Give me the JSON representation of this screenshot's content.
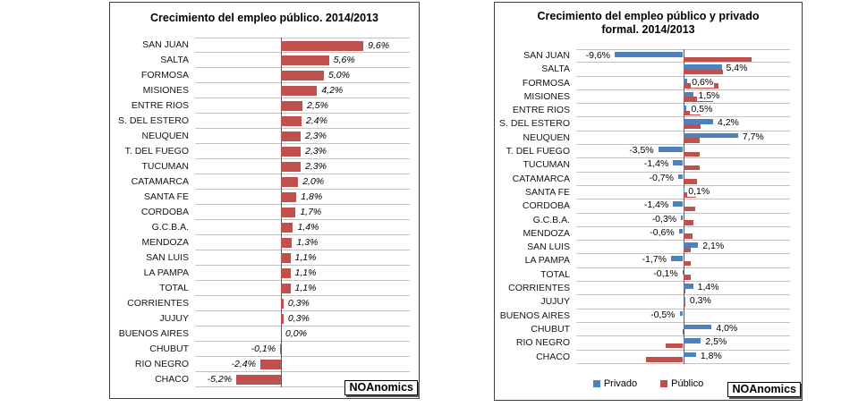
{
  "brand_label": "NOAnomics",
  "colors": {
    "publico_bar": "#C0504D",
    "privado_bar": "#4F81BD",
    "gridline": "#c4c4c4",
    "zero_axis": "#5a5a5a",
    "chart_border": "#3f3f3f",
    "background": "#ffffff"
  },
  "left_chart": {
    "title": "Crecimiento del empleo público. 2014/2013"
  },
  "right_chart": {
    "title_line1": "Crecimiento del empleo público y privado",
    "title_line2": "formal. 2014/2013",
    "legend": {
      "privado": "Privado",
      "publico": "Público"
    }
  },
  "chart_data": [
    {
      "type": "bar",
      "orientation": "horizontal",
      "title": "Crecimiento del empleo público. 2014/2013",
      "series_name": "Público",
      "bar_color": "#C0504D",
      "categories": [
        "SAN JUAN",
        "SALTA",
        "FORMOSA",
        "MISIONES",
        "ENTRE RIOS",
        "S. DEL ESTERO",
        "NEUQUEN",
        "T. DEL FUEGO",
        "TUCUMAN",
        "CATAMARCA",
        "SANTA FE",
        "CORDOBA",
        "G.C.B.A.",
        "MENDOZA",
        "SAN LUIS",
        "LA PAMPA",
        "TOTAL",
        "CORRIENTES",
        "JUJUY",
        "BUENOS AIRES",
        "CHUBUT",
        "RIO NEGRO",
        "CHACO"
      ],
      "values": [
        9.6,
        5.6,
        5.0,
        4.2,
        2.5,
        2.4,
        2.3,
        2.3,
        2.3,
        2.0,
        1.8,
        1.7,
        1.4,
        1.3,
        1.1,
        1.1,
        1.1,
        0.3,
        0.3,
        0.0,
        -0.1,
        -2.4,
        -5.2
      ],
      "value_labels": [
        "9,6%",
        "5,6%",
        "5,0%",
        "4,2%",
        "2,5%",
        "2,4%",
        "2,3%",
        "2,3%",
        "2,3%",
        "2,0%",
        "1,8%",
        "1,7%",
        "1,4%",
        "1,3%",
        "1,1%",
        "1,1%",
        "1,1%",
        "0,3%",
        "0,3%",
        "0,0%",
        "-0,1%",
        "-2,4%",
        "-5,2%"
      ],
      "xlim": [
        -10,
        15
      ],
      "grid": true,
      "legend_position": "none"
    },
    {
      "type": "bar",
      "orientation": "horizontal",
      "title": "Crecimiento del empleo público y privado formal. 2014/2013",
      "categories": [
        "SAN JUAN",
        "SALTA",
        "FORMOSA",
        "MISIONES",
        "ENTRE RIOS",
        "S. DEL ESTERO",
        "NEUQUEN",
        "T. DEL FUEGO",
        "TUCUMAN",
        "CATAMARCA",
        "SANTA FE",
        "CORDOBA",
        "G.C.B.A.",
        "MENDOZA",
        "SAN LUIS",
        "LA PAMPA",
        "TOTAL",
        "CORRIENTES",
        "JUJUY",
        "BUENOS AIRES",
        "CHUBUT",
        "RIO NEGRO",
        "CHACO"
      ],
      "series": [
        {
          "name": "Privado",
          "color": "#4F81BD",
          "labeled": true,
          "values": [
            -9.6,
            5.4,
            0.6,
            1.5,
            0.5,
            4.2,
            7.7,
            -3.5,
            -1.4,
            -0.7,
            0.1,
            -1.4,
            -0.3,
            -0.6,
            2.1,
            -1.7,
            -0.1,
            1.4,
            0.3,
            -0.5,
            4.0,
            2.5,
            1.8
          ],
          "value_labels": [
            "-9,6%",
            "5,4%",
            "0,6%",
            "1,5%",
            "0,5%",
            "4,2%",
            "7,7%",
            "-3,5%",
            "-1,4%",
            "-0,7%",
            "0,1%",
            "-1,4%",
            "-0,3%",
            "-0,6%",
            "2,1%",
            "-1,7%",
            "-0,1%",
            "1,4%",
            "0,3%",
            "-0,5%",
            "4,0%",
            "2,5%",
            "1,8%"
          ]
        },
        {
          "name": "Público",
          "color": "#C0504D",
          "labeled": false,
          "values": [
            9.6,
            5.6,
            5.0,
            4.2,
            2.5,
            2.4,
            2.3,
            2.3,
            2.3,
            2.0,
            1.8,
            1.7,
            1.4,
            1.3,
            1.1,
            1.1,
            1.1,
            0.3,
            0.3,
            0.0,
            -0.1,
            -2.4,
            -5.2
          ],
          "value_labels": []
        }
      ],
      "xlim": [
        -15,
        15
      ],
      "grid": true,
      "legend_position": "bottom"
    }
  ]
}
